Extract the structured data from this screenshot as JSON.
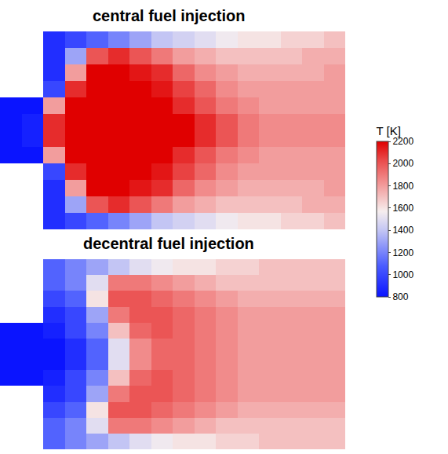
{
  "chart_data": [
    {
      "type": "heatmap",
      "title": "central fuel injection",
      "tick_labels": false,
      "z": [
        [
          null,
          null,
          900,
          1000,
          1100,
          1200,
          1300,
          1400,
          1450,
          1500,
          1550,
          1600,
          1600,
          1650,
          1650,
          1700
        ],
        [
          null,
          null,
          900,
          1300,
          2000,
          2100,
          2000,
          1900,
          1800,
          1750,
          1700,
          1700,
          1700,
          1700,
          1750,
          1750
        ],
        [
          null,
          null,
          900,
          1800,
          2200,
          2200,
          2150,
          2100,
          1950,
          1850,
          1800,
          1750,
          1750,
          1750,
          1750,
          1800
        ],
        [
          null,
          null,
          1000,
          2100,
          2200,
          2200,
          2200,
          2150,
          2050,
          1950,
          1850,
          1800,
          1800,
          1800,
          1800,
          1800
        ],
        [
          800,
          800,
          1800,
          2200,
          2200,
          2200,
          2200,
          2200,
          2100,
          2000,
          1900,
          1850,
          1800,
          1800,
          1800,
          1800
        ],
        [
          800,
          850,
          2100,
          2200,
          2200,
          2200,
          2200,
          2200,
          2200,
          2100,
          2000,
          1900,
          1850,
          1850,
          1850,
          1850
        ],
        [
          800,
          850,
          2100,
          2200,
          2200,
          2200,
          2200,
          2200,
          2200,
          2100,
          2000,
          1900,
          1850,
          1850,
          1850,
          1850
        ],
        [
          800,
          800,
          1800,
          2200,
          2200,
          2200,
          2200,
          2200,
          2100,
          2000,
          1900,
          1850,
          1800,
          1800,
          1800,
          1800
        ],
        [
          null,
          null,
          1000,
          2100,
          2200,
          2200,
          2200,
          2150,
          2050,
          1950,
          1850,
          1800,
          1800,
          1800,
          1800,
          1800
        ],
        [
          null,
          null,
          900,
          1800,
          2200,
          2200,
          2150,
          2100,
          1950,
          1850,
          1800,
          1750,
          1750,
          1750,
          1750,
          1800
        ],
        [
          null,
          null,
          900,
          1300,
          2000,
          2100,
          2000,
          1900,
          1800,
          1750,
          1700,
          1700,
          1700,
          1700,
          1750,
          1750
        ],
        [
          null,
          null,
          900,
          1000,
          1100,
          1200,
          1300,
          1400,
          1450,
          1500,
          1550,
          1600,
          1600,
          1650,
          1650,
          1700
        ]
      ]
    },
    {
      "type": "heatmap",
      "title": "decentral fuel injection",
      "tick_labels": false,
      "z": [
        [
          null,
          null,
          1100,
          1200,
          1300,
          1400,
          1500,
          1550,
          1600,
          1600,
          1650,
          1650,
          1700,
          1700,
          1700,
          1700
        ],
        [
          null,
          null,
          1100,
          1200,
          1500,
          1900,
          1900,
          1850,
          1800,
          1750,
          1700,
          1700,
          1700,
          1700,
          1700,
          1700
        ],
        [
          null,
          null,
          1000,
          1100,
          1600,
          2000,
          2000,
          1950,
          1900,
          1850,
          1800,
          1750,
          1750,
          1750,
          1750,
          1750
        ],
        [
          null,
          null,
          900,
          1000,
          1300,
          1900,
          2000,
          2000,
          1950,
          1900,
          1850,
          1800,
          1800,
          1800,
          1800,
          1800
        ],
        [
          800,
          800,
          850,
          1000,
          1200,
          1700,
          1950,
          2000,
          1950,
          1900,
          1850,
          1800,
          1800,
          1800,
          1800,
          1800
        ],
        [
          800,
          800,
          800,
          900,
          1100,
          1500,
          1850,
          1950,
          1950,
          1900,
          1850,
          1800,
          1800,
          1800,
          1800,
          1800
        ],
        [
          800,
          800,
          800,
          900,
          1100,
          1500,
          1850,
          1950,
          1950,
          1900,
          1850,
          1800,
          1800,
          1800,
          1800,
          1800
        ],
        [
          800,
          800,
          850,
          1000,
          1200,
          1700,
          1950,
          2000,
          1950,
          1900,
          1850,
          1800,
          1800,
          1800,
          1800,
          1800
        ],
        [
          null,
          null,
          900,
          1000,
          1300,
          1900,
          2000,
          2000,
          1950,
          1900,
          1850,
          1800,
          1800,
          1800,
          1800,
          1800
        ],
        [
          null,
          null,
          1000,
          1100,
          1600,
          2000,
          2000,
          1950,
          1900,
          1850,
          1800,
          1750,
          1750,
          1750,
          1750,
          1750
        ],
        [
          null,
          null,
          1100,
          1200,
          1500,
          1900,
          1900,
          1850,
          1800,
          1750,
          1700,
          1700,
          1700,
          1700,
          1700,
          1700
        ],
        [
          null,
          null,
          1100,
          1200,
          1300,
          1400,
          1500,
          1550,
          1600,
          1600,
          1650,
          1650,
          1700,
          1700,
          1700,
          1700
        ]
      ]
    }
  ],
  "colorbar": {
    "title": "T [K]",
    "range": [
      800,
      2200
    ],
    "ticks": [
      800,
      1000,
      1200,
      1400,
      1600,
      1800,
      2000,
      2200
    ]
  }
}
